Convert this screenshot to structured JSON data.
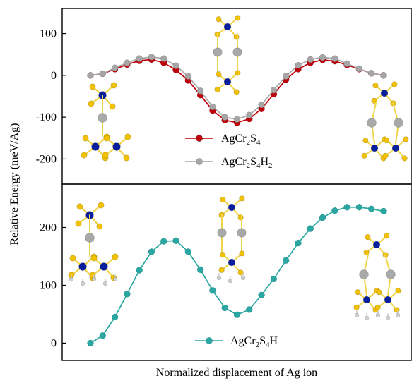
{
  "chart_data": [
    {
      "type": "line",
      "ylabel": "",
      "ylim": [
        -260,
        160
      ],
      "yticks": [
        100,
        0,
        -100,
        -200
      ],
      "series": [
        {
          "name": "AgCr2S4",
          "name_base": "AgCr",
          "name_sub1": "2",
          "name_mid": "S",
          "name_sub2": "4",
          "name_tail": "",
          "name_sub3": "",
          "color": "#c0000a",
          "x": [
            0,
            0.0417,
            0.0833,
            0.125,
            0.1667,
            0.2083,
            0.25,
            0.2917,
            0.3333,
            0.375,
            0.4167,
            0.4583,
            0.5,
            0.5417,
            0.5833,
            0.625,
            0.6667,
            0.7083,
            0.75,
            0.7917,
            0.8333,
            0.875,
            0.9167,
            0.9583,
            1
          ],
          "values": [
            0,
            4,
            15,
            26,
            35,
            38,
            30,
            13,
            -12,
            -47,
            -84,
            -107,
            -113,
            -104,
            -80,
            -45,
            -10,
            15,
            30,
            37,
            34,
            25,
            15,
            5,
            0
          ]
        },
        {
          "name": "AgCr2S4H2",
          "name_base": "AgCr",
          "name_sub1": "2",
          "name_mid": "S",
          "name_sub2": "4",
          "name_tail": "H",
          "name_sub3": "2",
          "color": "#a6a6a6",
          "x": [
            0,
            0.0417,
            0.0833,
            0.125,
            0.1667,
            0.2083,
            0.25,
            0.2917,
            0.3333,
            0.375,
            0.4167,
            0.4583,
            0.5,
            0.5417,
            0.5833,
            0.625,
            0.6667,
            0.7083,
            0.75,
            0.7917,
            0.8333,
            0.875,
            0.9167,
            0.9583,
            1
          ],
          "values": [
            0,
            4,
            18,
            30,
            40,
            44,
            40,
            23,
            -2,
            -37,
            -75,
            -100,
            -105,
            -95,
            -70,
            -35,
            -2,
            24,
            38,
            43,
            40,
            28,
            16,
            5,
            0
          ]
        }
      ]
    },
    {
      "type": "line",
      "ylabel": "",
      "ylim": [
        -30,
        275
      ],
      "yticks": [
        200,
        100,
        0
      ],
      "series": [
        {
          "name": "AgCr2S4H",
          "name_base": "AgCr",
          "name_sub1": "2",
          "name_mid": "S",
          "name_sub2": "4",
          "name_tail": "H",
          "name_sub3": "",
          "color": "#2aa7a2",
          "x": [
            0,
            0.0417,
            0.0833,
            0.125,
            0.1667,
            0.2083,
            0.25,
            0.2917,
            0.3333,
            0.375,
            0.4167,
            0.4583,
            0.5,
            0.5417,
            0.5833,
            0.625,
            0.6667,
            0.7083,
            0.75,
            0.7917,
            0.8333,
            0.875,
            0.9167,
            0.9583,
            1
          ],
          "values": [
            0,
            13,
            45,
            85,
            126,
            158,
            176,
            177,
            158,
            127,
            91,
            61,
            49,
            58,
            83,
            111,
            143,
            173,
            198,
            217,
            229,
            235,
            235,
            232,
            228
          ]
        }
      ]
    }
  ],
  "labels": {
    "ylabel": "Relative Energy (meV/Ag)",
    "xlabel": "Normalized displacement of Ag ion"
  },
  "colors": {
    "sulfur": "#f2c200",
    "chromium": "#0a1f9e",
    "silver": "#a9a9a9",
    "hydrogen": "#d0d0d0",
    "bond_s": "#f0d44a",
    "bond_cr": "#1e3ab0"
  }
}
